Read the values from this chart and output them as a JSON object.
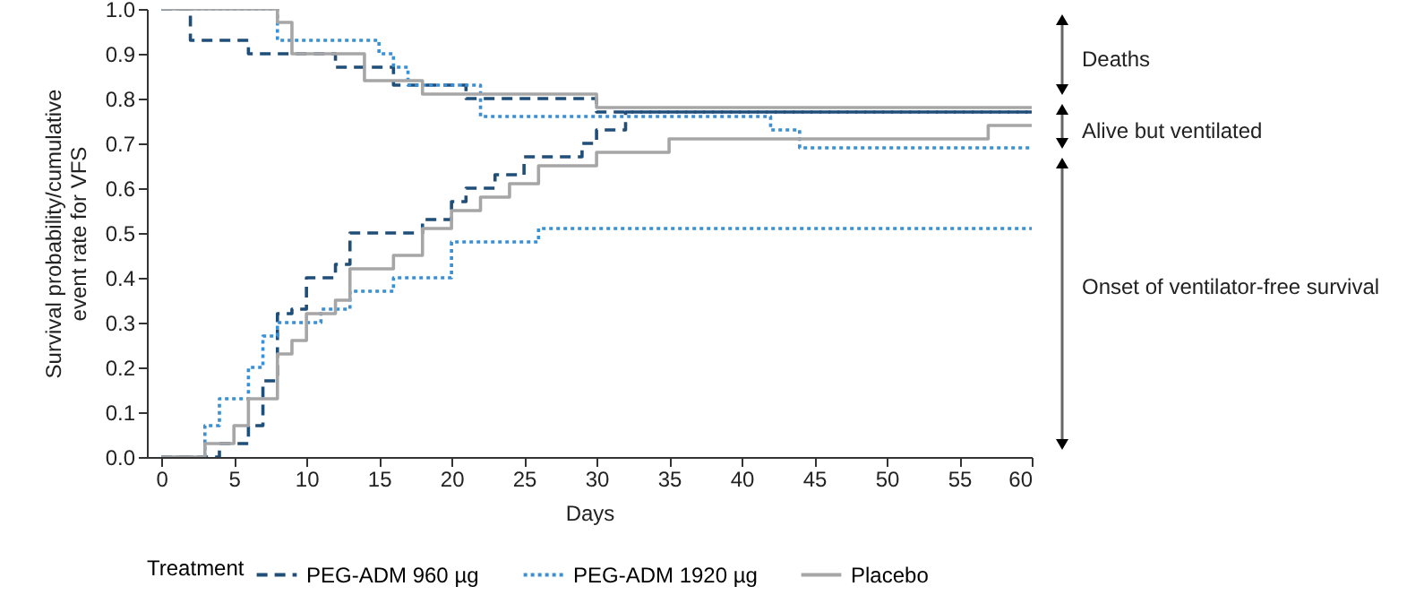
{
  "chart_data": {
    "type": "step",
    "xlabel": "Days",
    "ylabel": "Survival probability/cumulative event rate for VFS",
    "legend_title": "Treatment",
    "legend": "bottom",
    "grid": false,
    "xlim": [
      -1,
      60
    ],
    "xticks": [
      0,
      5,
      10,
      15,
      20,
      25,
      30,
      35,
      40,
      45,
      50,
      55,
      60
    ],
    "ylim": [
      0,
      1
    ],
    "yticks": [
      {
        "value": 0,
        "label": "0.0"
      },
      0.1,
      0.2,
      0.3,
      0.4,
      0.5,
      0.6,
      0.7,
      0.8,
      0.9,
      {
        "value": 1,
        "label": "1.0"
      }
    ],
    "annotations": [
      "Deaths",
      "Alive but ventilated",
      "Onset of ventilator-free survival"
    ],
    "series": [
      {
        "name": "PEG-ADM 960 µg",
        "color": "#1f4e79",
        "line_style": "dashed",
        "x": [
          0,
          2,
          6,
          12,
          16,
          21,
          30,
          60
        ],
        "values": [
          1,
          0.93,
          0.9,
          0.87,
          0.83,
          0.8,
          0.77,
          0.77
        ]
      },
      {
        "name": "PEG-ADM 1920 µg",
        "color": "#3b8fd4",
        "line_style": "dotted",
        "x": [
          0,
          8,
          15,
          16,
          17,
          22,
          42,
          44,
          60
        ],
        "values": [
          1,
          0.93,
          0.9,
          0.87,
          0.83,
          0.76,
          0.73,
          0.69,
          0.69
        ]
      },
      {
        "name": "Placebo",
        "color": "#a6a6a6",
        "line_style": "solid",
        "x": [
          0,
          8,
          9,
          14,
          18,
          30,
          60
        ],
        "values": [
          1,
          0.97,
          0.9,
          0.84,
          0.81,
          0.78,
          0.78
        ]
      },
      {
        "color": "#1f4e79",
        "line_style": "dashed",
        "x": [
          0,
          4,
          6,
          7,
          8,
          9,
          10,
          12,
          13,
          18,
          20,
          21,
          23,
          25,
          29,
          30,
          32,
          60
        ],
        "values": [
          0,
          0.03,
          0.07,
          0.17,
          0.32,
          0.33,
          0.4,
          0.43,
          0.5,
          0.53,
          0.57,
          0.6,
          0.63,
          0.67,
          0.7,
          0.73,
          0.77,
          0.77
        ]
      },
      {
        "color": "#3b8fd4",
        "line_style": "dotted",
        "x": [
          0,
          3,
          4,
          6,
          7,
          8,
          11,
          13,
          16,
          20,
          26,
          60
        ],
        "values": [
          0,
          0.07,
          0.13,
          0.2,
          0.27,
          0.3,
          0.33,
          0.37,
          0.4,
          0.48,
          0.51,
          0.51
        ]
      },
      {
        "color": "#a6a6a6",
        "line_style": "solid",
        "x": [
          0,
          3,
          5,
          6,
          8,
          9,
          10,
          12,
          13,
          16,
          18,
          20,
          22,
          24,
          26,
          30,
          35,
          57,
          60
        ],
        "values": [
          0,
          0.03,
          0.07,
          0.13,
          0.23,
          0.26,
          0.32,
          0.35,
          0.42,
          0.45,
          0.51,
          0.55,
          0.58,
          0.61,
          0.65,
          0.68,
          0.71,
          0.74,
          0.74
        ]
      }
    ]
  }
}
